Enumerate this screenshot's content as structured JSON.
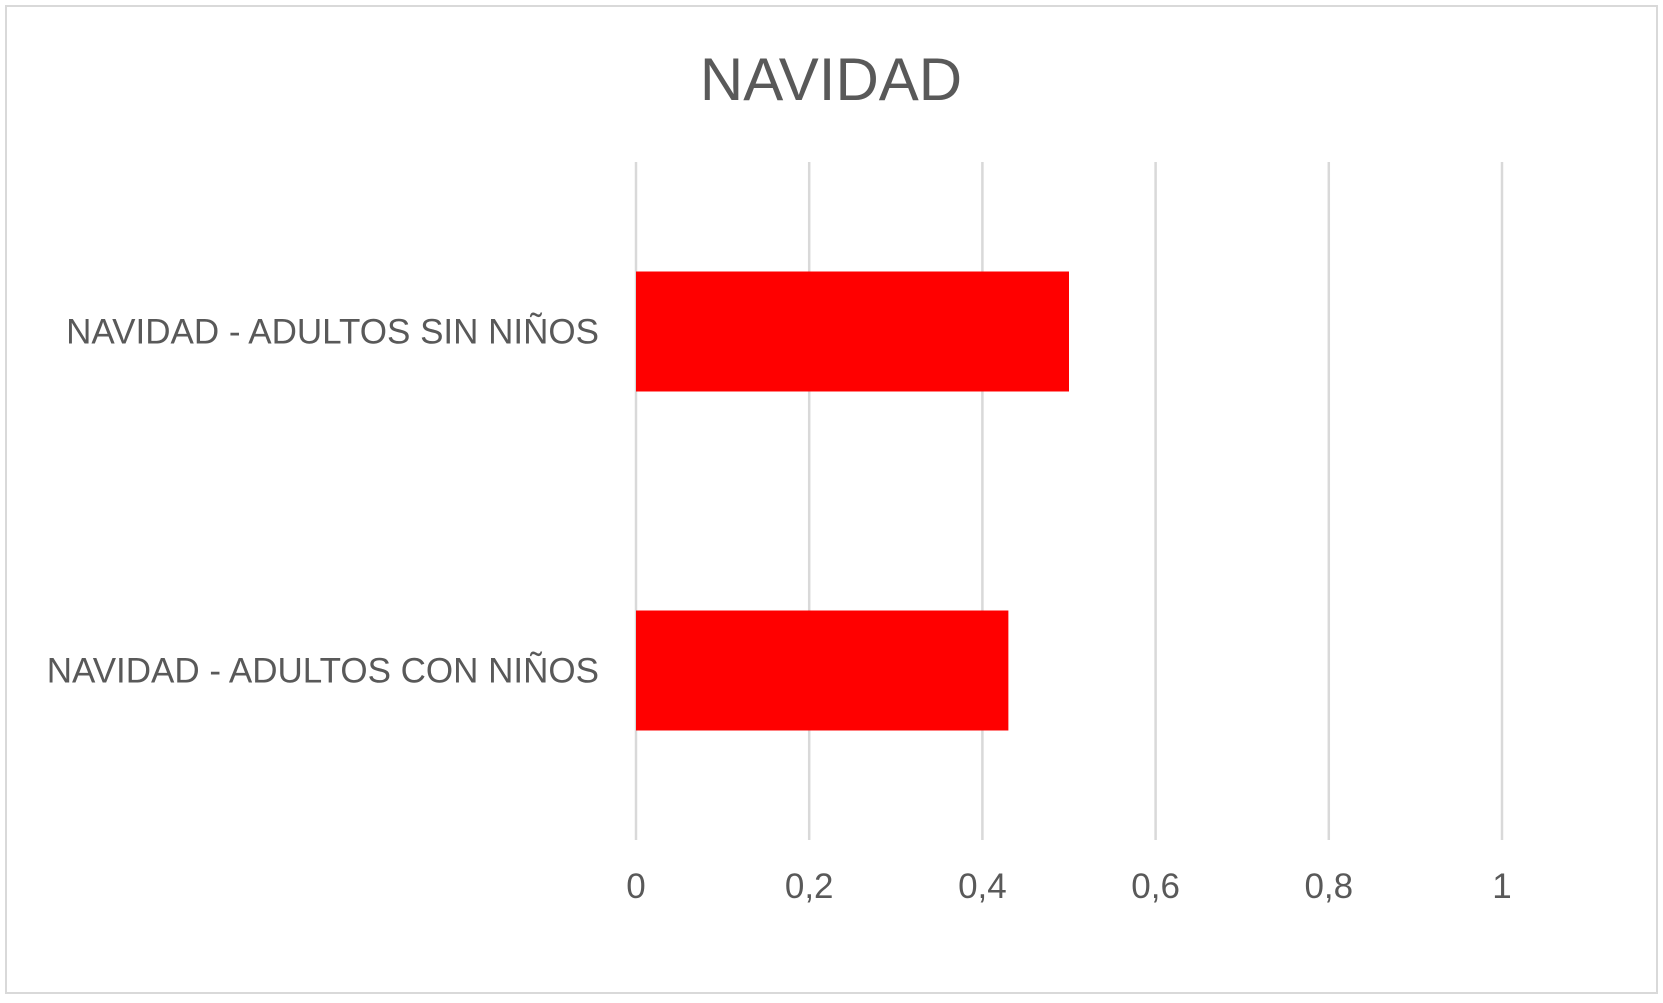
{
  "chart_data": {
    "type": "bar",
    "orientation": "horizontal",
    "title": "NAVIDAD",
    "categories": [
      "NAVIDAD - ADULTOS SIN NIÑOS",
      "NAVIDAD - ADULTOS CON NIÑOS"
    ],
    "values": [
      0.5,
      0.43
    ],
    "xlim": [
      0,
      1
    ],
    "xticks": [
      0,
      0.2,
      0.4,
      0.6,
      0.8,
      1
    ],
    "xtick_labels": [
      "0",
      "0,2",
      "0,4",
      "0,6",
      "0,8",
      "1"
    ],
    "xlabel": "",
    "ylabel": "",
    "grid": "vertical",
    "legend": "none",
    "bar_color": "#ff0000",
    "grid_color": "#d9d9d9",
    "text_color": "#595959"
  }
}
